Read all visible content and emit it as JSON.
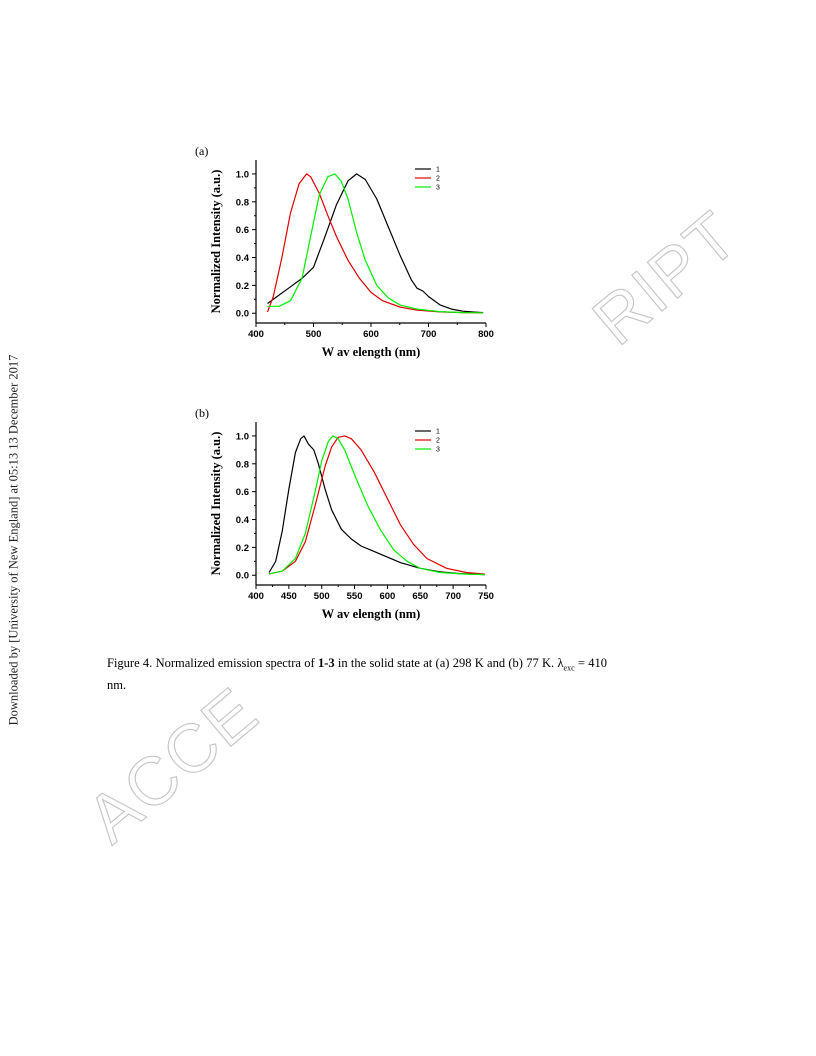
{
  "side_note": "Downloaded by [University of New England] at 05:13 13 December 2017",
  "watermark": {
    "left_text": "ACCE",
    "right_text": "RIPT"
  },
  "caption": {
    "prefix": "Figure 4. Normalized emission spectra of ",
    "bold": "1-3",
    "middle": " in the solid state at (a) 298 K and (b) 77 K. λ",
    "sub": "exc",
    "suffix": " = 410 nm."
  },
  "chart_data": [
    {
      "type": "line",
      "panel_label": "(a)",
      "xlabel": "W av elength (nm)",
      "ylabel": "Normalized Intensity (a.u.)",
      "xlim": [
        400,
        800
      ],
      "ylim": [
        -0.07,
        1.1
      ],
      "xticks": [
        400,
        500,
        600,
        700,
        800
      ],
      "yticks": [
        0.0,
        0.2,
        0.4,
        0.6,
        0.8,
        1.0
      ],
      "legend_position": "top-right",
      "series": [
        {
          "name": "1",
          "color": "#000000",
          "x": [
            420,
            440,
            460,
            480,
            500,
            520,
            540,
            560,
            575,
            590,
            610,
            630,
            650,
            670,
            680,
            690,
            700,
            720,
            740,
            760,
            780,
            795
          ],
          "y": [
            0.07,
            0.13,
            0.19,
            0.25,
            0.33,
            0.55,
            0.78,
            0.95,
            1.0,
            0.96,
            0.82,
            0.62,
            0.42,
            0.24,
            0.18,
            0.16,
            0.12,
            0.06,
            0.03,
            0.015,
            0.008,
            0.005
          ]
        },
        {
          "name": "2",
          "color": "#e00000",
          "x": [
            420,
            430,
            445,
            460,
            475,
            488,
            495,
            510,
            525,
            540,
            560,
            580,
            600,
            620,
            650,
            680,
            720,
            760,
            795
          ],
          "y": [
            0.01,
            0.12,
            0.4,
            0.72,
            0.93,
            1.0,
            0.98,
            0.86,
            0.7,
            0.55,
            0.38,
            0.25,
            0.15,
            0.09,
            0.045,
            0.022,
            0.01,
            0.005,
            0.003
          ]
        },
        {
          "name": "3",
          "color": "#00ee00",
          "x": [
            420,
            440,
            460,
            480,
            495,
            510,
            525,
            537,
            548,
            560,
            575,
            590,
            610,
            630,
            650,
            680,
            720,
            760,
            795
          ],
          "y": [
            0.05,
            0.05,
            0.09,
            0.25,
            0.55,
            0.85,
            0.98,
            1.0,
            0.95,
            0.82,
            0.58,
            0.38,
            0.2,
            0.11,
            0.06,
            0.03,
            0.012,
            0.005,
            0.003
          ]
        }
      ]
    },
    {
      "type": "line",
      "panel_label": "(b)",
      "xlabel": "W av elength (nm)",
      "ylabel": "Normalized Intensity (a.u.)",
      "xlim": [
        400,
        750
      ],
      "ylim": [
        -0.07,
        1.1
      ],
      "xticks": [
        400,
        450,
        500,
        550,
        600,
        650,
        700,
        750
      ],
      "yticks": [
        0.0,
        0.2,
        0.4,
        0.6,
        0.8,
        1.0
      ],
      "legend_position": "top-right",
      "series": [
        {
          "name": "1",
          "color": "#000000",
          "x": [
            420,
            430,
            440,
            450,
            460,
            468,
            473,
            480,
            488,
            495,
            505,
            515,
            530,
            545,
            560,
            580,
            600,
            620,
            650,
            680,
            710,
            740,
            748
          ],
          "y": [
            0.02,
            0.1,
            0.32,
            0.62,
            0.88,
            0.98,
            1.0,
            0.94,
            0.9,
            0.8,
            0.62,
            0.47,
            0.33,
            0.26,
            0.21,
            0.17,
            0.13,
            0.09,
            0.05,
            0.025,
            0.012,
            0.006,
            0.005
          ]
        },
        {
          "name": "2",
          "color": "#e00000",
          "x": [
            420,
            440,
            460,
            475,
            490,
            505,
            515,
            525,
            535,
            545,
            560,
            580,
            600,
            620,
            640,
            660,
            690,
            720,
            748
          ],
          "y": [
            0.01,
            0.03,
            0.1,
            0.24,
            0.5,
            0.78,
            0.92,
            0.99,
            1.0,
            0.98,
            0.9,
            0.74,
            0.55,
            0.36,
            0.22,
            0.12,
            0.05,
            0.02,
            0.008
          ]
        },
        {
          "name": "3",
          "color": "#00ee00",
          "x": [
            420,
            440,
            460,
            475,
            490,
            500,
            510,
            517,
            525,
            535,
            550,
            570,
            590,
            610,
            630,
            650,
            680,
            720,
            748
          ],
          "y": [
            0.01,
            0.03,
            0.12,
            0.3,
            0.6,
            0.82,
            0.96,
            1.0,
            0.98,
            0.9,
            0.72,
            0.5,
            0.32,
            0.18,
            0.1,
            0.05,
            0.02,
            0.008,
            0.005
          ]
        }
      ]
    }
  ]
}
